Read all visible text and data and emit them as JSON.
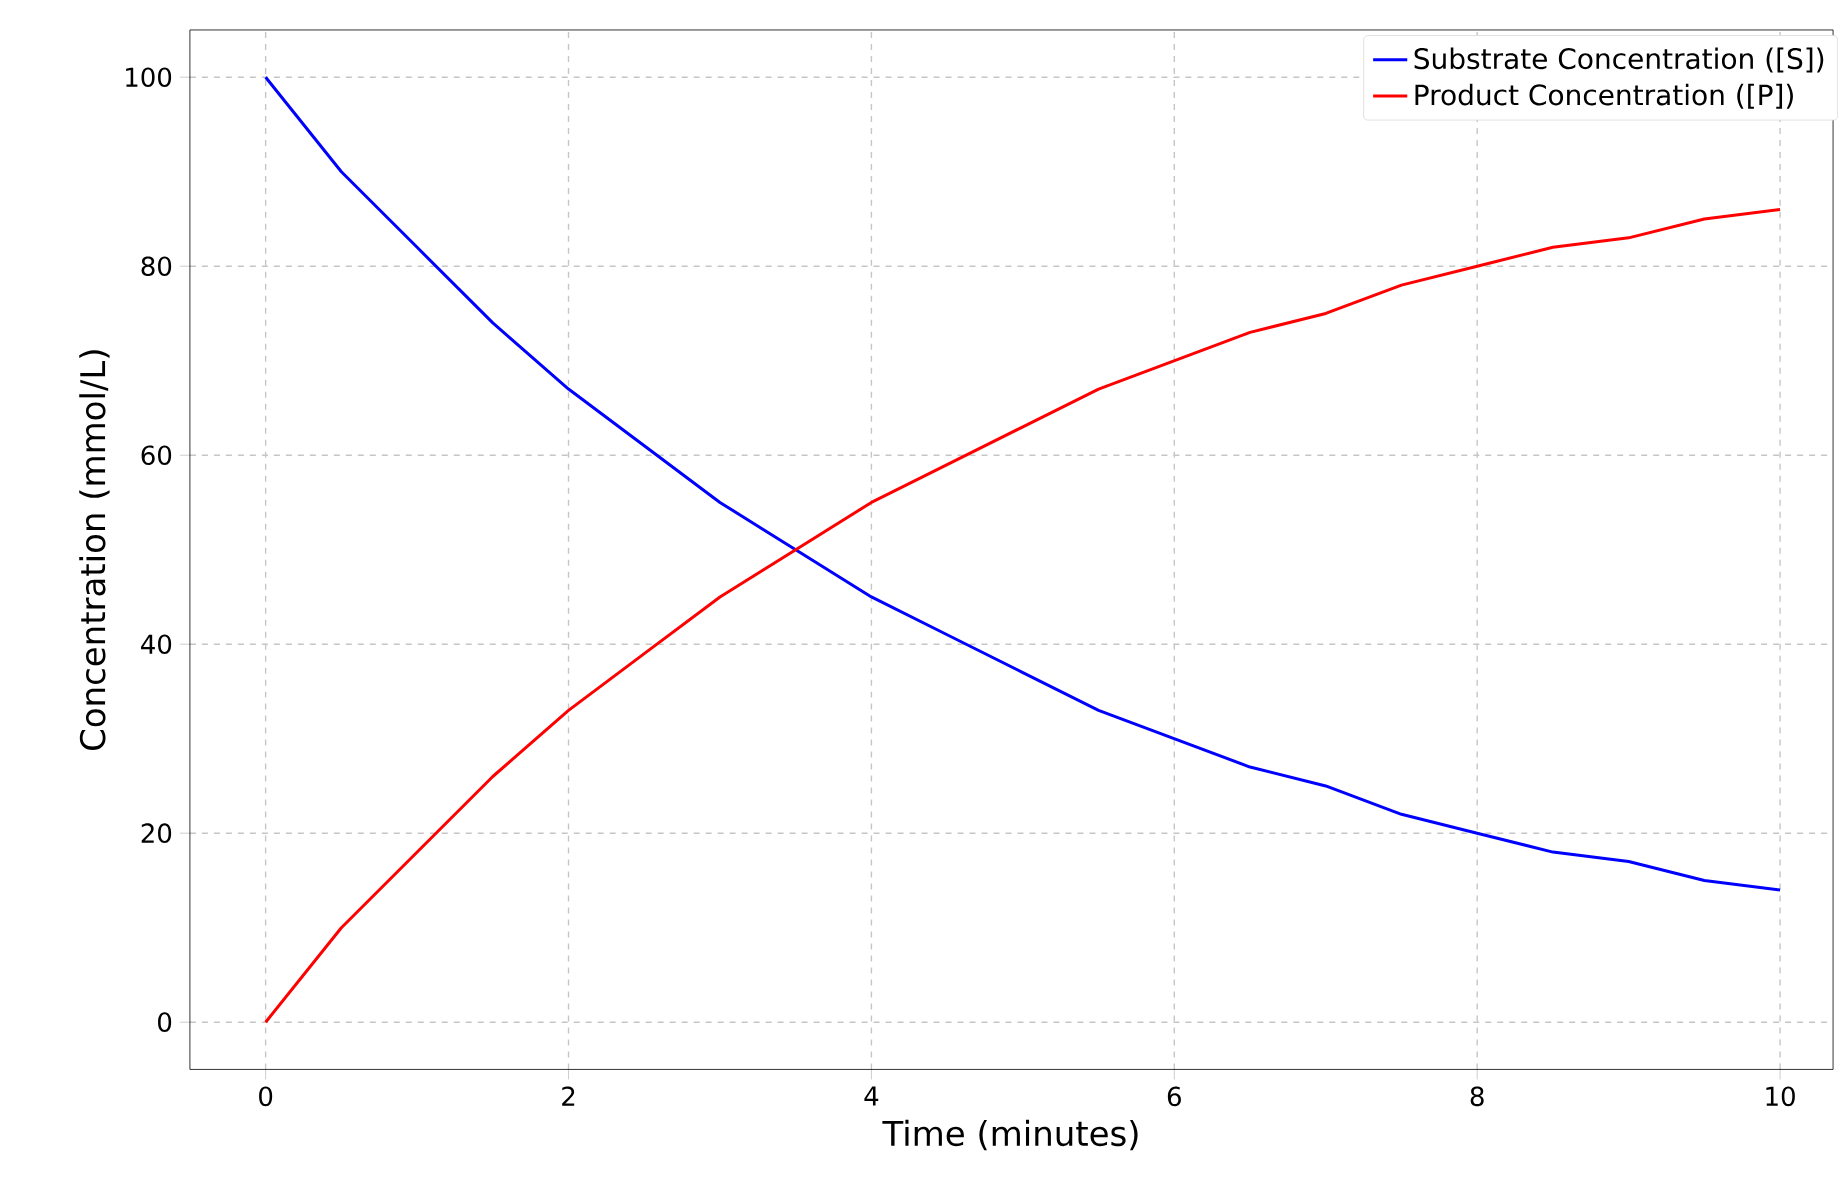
{
  "chart_data": {
    "type": "line",
    "xlabel": "Time (minutes)",
    "ylabel": "Concentration (mmol/L)",
    "x": [
      0,
      0.5,
      1,
      1.5,
      2,
      2.5,
      3,
      3.5,
      4,
      4.5,
      5,
      5.5,
      6,
      6.5,
      7,
      7.5,
      8,
      8.5,
      9,
      9.5,
      10
    ],
    "series": [
      {
        "name": "Substrate Concentration ([S])",
        "color": "#0000ff",
        "values": [
          100,
          90,
          82,
          74,
          67,
          61,
          55,
          50,
          45,
          41,
          37,
          33,
          30,
          27,
          25,
          22,
          20,
          18,
          17,
          15,
          14
        ]
      },
      {
        "name": "Product Concentration ([P])",
        "color": "#ff0000",
        "values": [
          0,
          10,
          18,
          26,
          33,
          39,
          45,
          50,
          55,
          59,
          63,
          67,
          70,
          73,
          75,
          78,
          80,
          82,
          83,
          85,
          86
        ]
      }
    ],
    "xlim": [
      -0.5,
      10.35
    ],
    "ylim": [
      -5,
      105
    ],
    "xticks": [
      0,
      2,
      4,
      6,
      8,
      10
    ],
    "yticks": [
      0,
      20,
      40,
      60,
      80,
      100
    ],
    "grid": true,
    "legend": "top right",
    "line_style": "solid",
    "marker": "none"
  }
}
